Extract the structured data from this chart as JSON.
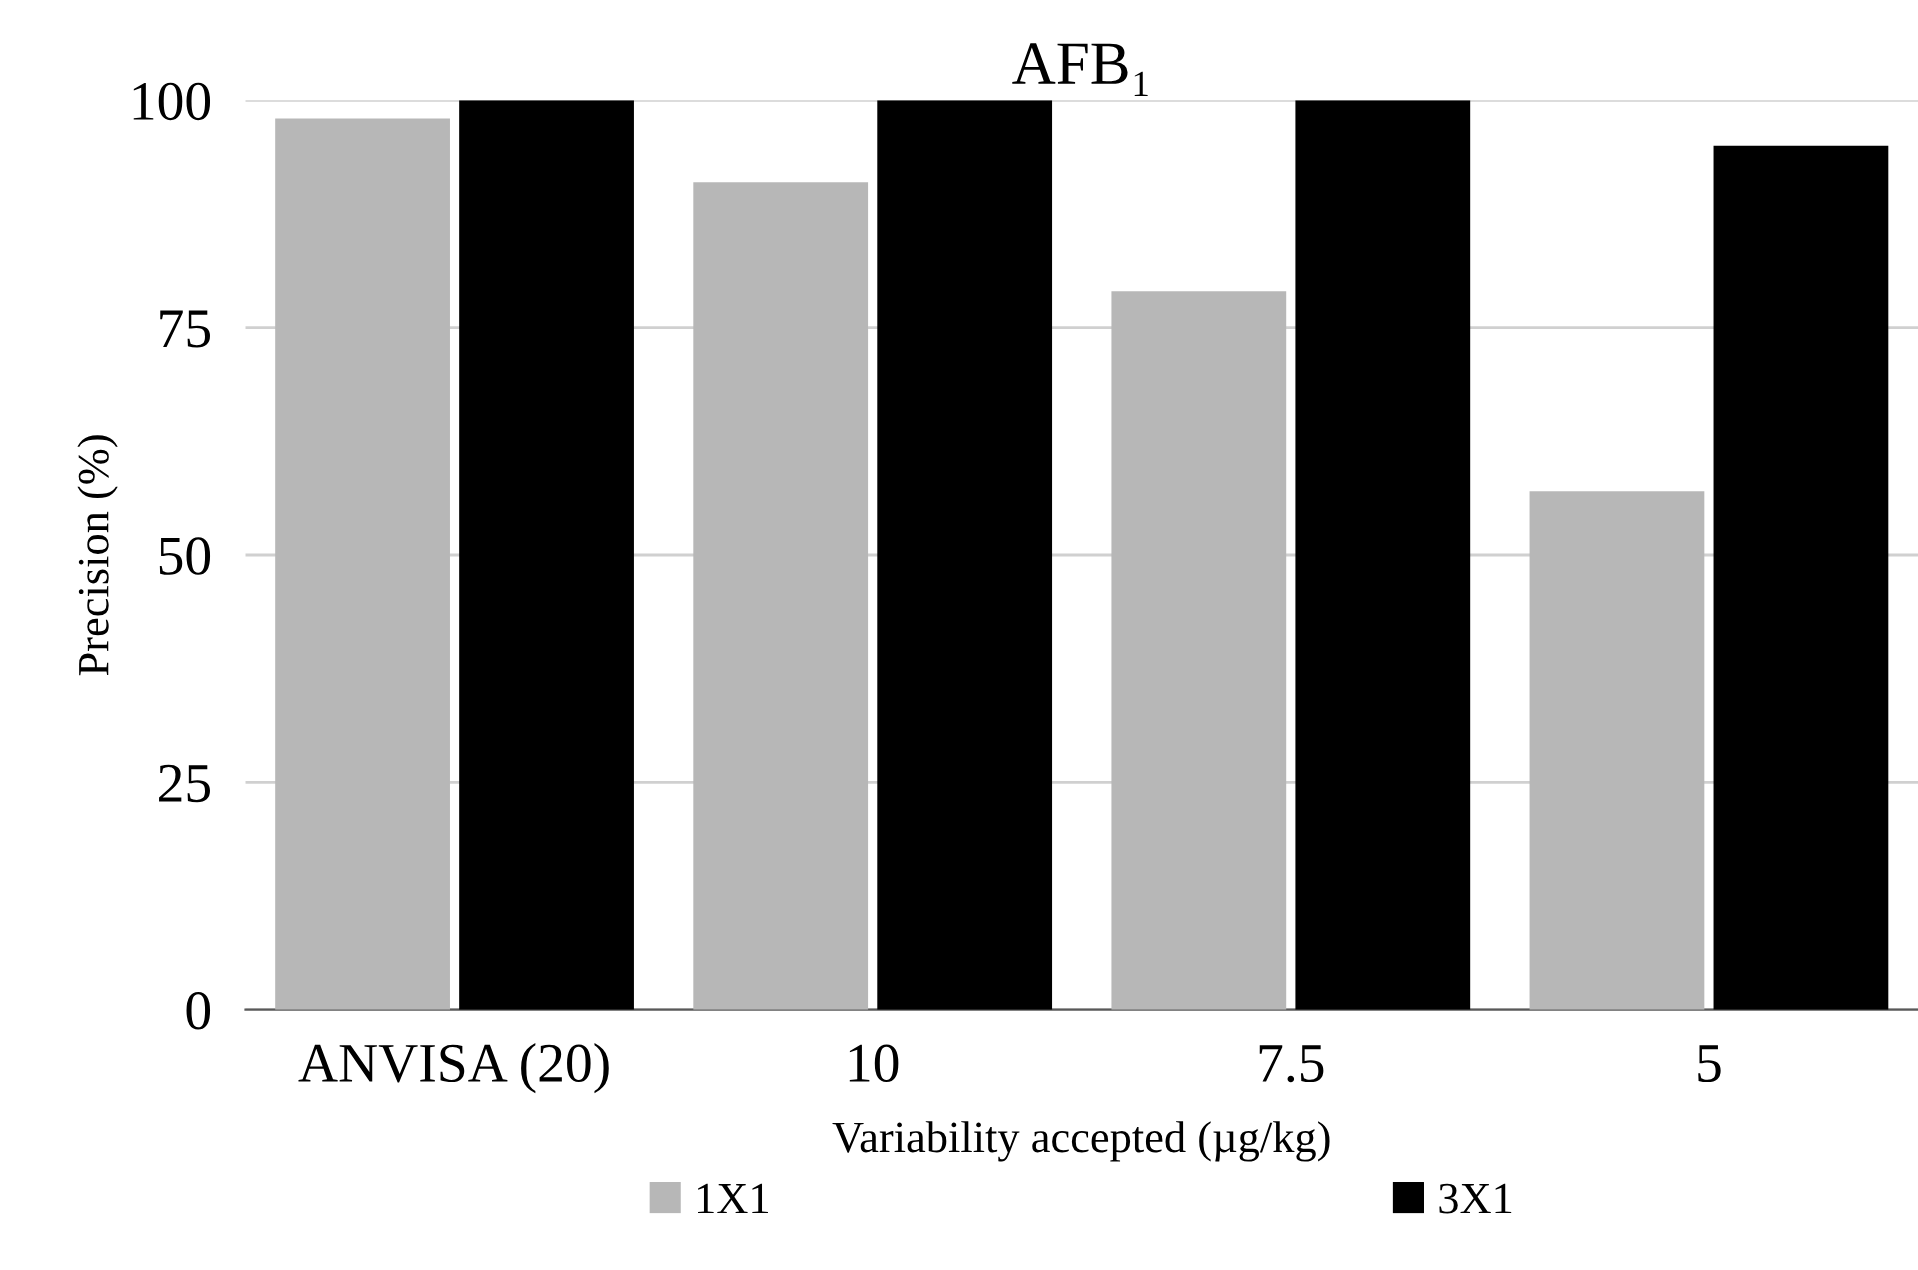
{
  "chart_data": {
    "type": "bar",
    "title": "AFB₁",
    "xlabel": "Variability accepted (µg/kg)",
    "ylabel": "Precision (%)",
    "categories": [
      "ANVISA (20)",
      "10",
      "7.5",
      "5"
    ],
    "series": [
      {
        "name": "1X1",
        "color": "#b7b7b7",
        "values": [
          98,
          91,
          79,
          57
        ]
      },
      {
        "name": "3X1",
        "color": "#000000",
        "values": [
          100,
          100,
          100,
          95
        ]
      }
    ],
    "ylim": [
      0,
      100
    ],
    "yticks": [
      0,
      25,
      50,
      75,
      100
    ],
    "grid": "y",
    "legend": "bottom"
  }
}
